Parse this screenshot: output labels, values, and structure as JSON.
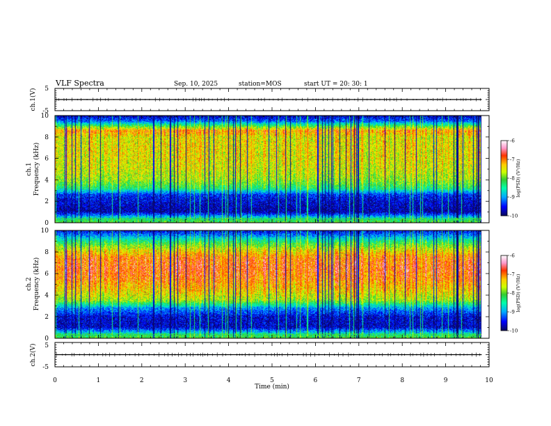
{
  "header": {
    "title": "VLF Spectra",
    "date": "Sep. 10, 2025",
    "station": "station=MOS",
    "start_ut": "start  UT  =   20: 30: 1"
  },
  "colors": {
    "axis": "#000000",
    "colormap": [
      "#0a0a5a",
      "#0000ff",
      "#00aaff",
      "#00ffaa",
      "#33cc33",
      "#ccff00",
      "#ffcc00",
      "#ff3300",
      "#ff99cc",
      "#ffffff"
    ]
  },
  "chart_data": [
    {
      "type": "line",
      "name": "waveform-ch1",
      "ylabel": "ch.1(V)",
      "ylim": [
        -5,
        5
      ],
      "yticks": [
        "5",
        "-5"
      ],
      "x": [
        0,
        9.83
      ],
      "y": [
        0,
        0
      ]
    },
    {
      "type": "heatmap",
      "name": "spectrogram-ch1",
      "ylabel": "ch.1\nFrequency (kHz)",
      "ylim": [
        0,
        10
      ],
      "yticks": [
        "0",
        "2",
        "4",
        "6",
        "8",
        "10"
      ],
      "xlim": [
        0,
        10
      ],
      "data_end_min": 9.83,
      "profile_kHz": [
        [
          0,
          0.5
        ],
        [
          0.5,
          0.3
        ],
        [
          1.0,
          0.05
        ],
        [
          1.5,
          0.08
        ],
        [
          2.0,
          0.1
        ],
        [
          2.6,
          0.15
        ],
        [
          3.2,
          0.42
        ],
        [
          4.0,
          0.55
        ],
        [
          5.0,
          0.6
        ],
        [
          6.0,
          0.62
        ],
        [
          7.0,
          0.63
        ],
        [
          8.0,
          0.62
        ],
        [
          8.6,
          0.72
        ],
        [
          9.0,
          0.5
        ],
        [
          9.5,
          0.2
        ],
        [
          10,
          0.08
        ]
      ],
      "colorbar": {
        "label": "log(PSD) (V²/Hz)",
        "range": [
          -10,
          -6
        ],
        "ticks": [
          "-6",
          "-7",
          "-8",
          "-9",
          "-10"
        ]
      }
    },
    {
      "type": "heatmap",
      "name": "spectrogram-ch2",
      "ylabel": "ch.2\nFrequency (kHz)",
      "ylim": [
        0,
        10
      ],
      "yticks": [
        "0",
        "2",
        "4",
        "6",
        "8",
        "10"
      ],
      "xlim": [
        0,
        10
      ],
      "data_end_min": 9.83,
      "profile_kHz": [
        [
          0,
          0.5
        ],
        [
          0.4,
          0.35
        ],
        [
          1.0,
          0.08
        ],
        [
          2.0,
          0.1
        ],
        [
          2.8,
          0.25
        ],
        [
          3.5,
          0.55
        ],
        [
          4.5,
          0.66
        ],
        [
          5.5,
          0.74
        ],
        [
          6.5,
          0.78
        ],
        [
          7.5,
          0.74
        ],
        [
          8.3,
          0.6
        ],
        [
          9.0,
          0.42
        ],
        [
          9.6,
          0.22
        ],
        [
          10,
          0.12
        ]
      ],
      "colorbar": {
        "label": "log(PSD) (V²/Hz)",
        "range": [
          -10,
          -6
        ],
        "ticks": [
          "-6",
          "-7",
          "-8",
          "-9",
          "-10"
        ]
      }
    },
    {
      "type": "line",
      "name": "waveform-ch2",
      "ylabel": "ch.2(V)",
      "ylim": [
        -5,
        5
      ],
      "yticks": [
        "5",
        "-5"
      ],
      "x": [
        0,
        9.83
      ],
      "y": [
        0,
        0
      ]
    }
  ],
  "x_axis": {
    "label": "Time (min)",
    "range": [
      0,
      10
    ],
    "ticks": [
      "0",
      "1",
      "2",
      "3",
      "4",
      "5",
      "6",
      "7",
      "8",
      "9",
      "10"
    ]
  }
}
